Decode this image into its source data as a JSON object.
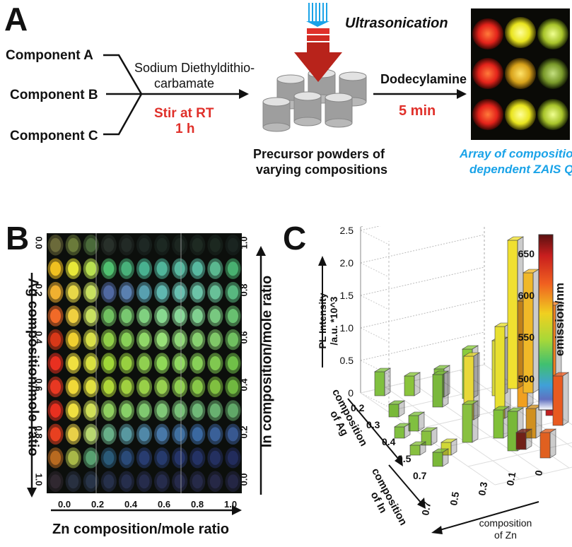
{
  "panel_a": {
    "letter": "A",
    "component_a": "Component A",
    "component_b": "Component B",
    "component_c": "Component C",
    "reagent_line1": "Sodium Diethyldithio-",
    "reagent_line2": "carbamate",
    "stir_line1": "Stir at RT",
    "stir_line2": "1 h",
    "ultrasonication": "Ultrasonication",
    "precursor_line1": "Precursor powders of",
    "precursor_line2": "varying compositions",
    "dodecylamine": "Dodecylamine",
    "time": "5 min",
    "array_line1": "Array of composition",
    "array_line2": "dependent ZAIS QDs"
  },
  "panel_b": {
    "letter": "B",
    "left_axis_label": "Ag composition/mole ratio",
    "right_axis_label": "In composition/mole ratio",
    "bottom_axis_label": "Zn composition/mole ratio",
    "left_ticks": [
      "0.0",
      "0.2",
      "0.4",
      "0.6",
      "0.8",
      "1.0"
    ],
    "right_ticks": [
      "1.0",
      "0.8",
      "0.6",
      "0.4",
      "0.2",
      "0.0"
    ],
    "bottom_ticks": [
      "0.0",
      "0.2",
      "0.4",
      "0.6",
      "0.8",
      "1.0"
    ]
  },
  "panel_c": {
    "letter": "C",
    "z_label_line1": "PL Intensity",
    "z_label_line2": "/a.u. *10^3",
    "z_ticks": [
      "0",
      "0.5",
      "1.0",
      "1.5",
      "2.0",
      "2.5"
    ],
    "ag_label_line1": "composition",
    "ag_label_line2": "of Ag",
    "ag_ticks": [
      "0.2",
      "0.3",
      "0.4",
      "0.5",
      "0.7"
    ],
    "in_label_line1": "composition",
    "in_label_line2": "of In",
    "in_ticks": [
      "0.7",
      "0.5",
      "0.3",
      "0.1",
      "0"
    ],
    "zn_label_line1": "composition",
    "zn_label_line2": "of Zn",
    "colorbar_label": "emission/nm",
    "colorbar_ticks": [
      "650",
      "600",
      "550",
      "500"
    ]
  },
  "colors": {
    "accent_red": "#e0302a",
    "accent_blue": "#1aa3e8",
    "arrow_red": "#c0291f"
  }
}
